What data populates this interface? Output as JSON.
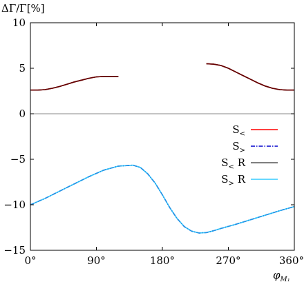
{
  "chart_data": {
    "type": "line",
    "ylabel": "ΔΓ/Γ[%]",
    "xlabel": "φ_{M_1}",
    "xlim": [
      0,
      360
    ],
    "ylim": [
      -15,
      10
    ],
    "xticks": [
      0,
      90,
      180,
      270,
      360
    ],
    "xtick_labels": [
      "0°",
      "90°",
      "180°",
      "270°",
      "360°"
    ],
    "yticks": [
      -15,
      -10,
      -5,
      0,
      5,
      10
    ],
    "ytick_labels": [
      "−15",
      "−10",
      "−5",
      "0",
      "5",
      "10"
    ],
    "grid": false,
    "legend_position": "right",
    "zero_line": true,
    "series": [
      {
        "name": "S<",
        "legend_main": "S",
        "legend_sub": "<",
        "color": "#ff0000",
        "dash": "solid",
        "x": [
          0,
          10,
          20,
          30,
          40,
          50,
          60,
          70,
          80,
          90,
          100,
          110,
          120,
          null,
          240,
          250,
          260,
          270,
          280,
          290,
          300,
          310,
          320,
          330,
          340,
          350,
          360
        ],
        "y": [
          2.6,
          2.6,
          2.65,
          2.8,
          3.0,
          3.25,
          3.5,
          3.7,
          3.9,
          4.05,
          4.1,
          4.1,
          4.1,
          null,
          5.5,
          5.45,
          5.3,
          5.0,
          4.6,
          4.2,
          3.8,
          3.4,
          3.05,
          2.8,
          2.65,
          2.6,
          2.6
        ]
      },
      {
        "name": "S>",
        "legend_main": "S",
        "legend_sub": ">",
        "color": "#0000cc",
        "dash": "dashdot",
        "x": [
          0,
          20,
          40,
          60,
          80,
          100,
          120,
          140,
          150,
          160,
          170,
          180,
          190,
          200,
          210,
          220,
          230,
          240,
          250,
          260,
          280,
          300,
          320,
          340,
          360
        ],
        "y": [
          -10.0,
          -9.3,
          -8.5,
          -7.7,
          -6.9,
          -6.2,
          -5.75,
          -5.65,
          -5.9,
          -6.6,
          -7.6,
          -8.9,
          -10.3,
          -11.5,
          -12.4,
          -12.9,
          -13.1,
          -13.05,
          -12.85,
          -12.6,
          -12.15,
          -11.65,
          -11.15,
          -10.65,
          -10.2
        ]
      },
      {
        "name": "S< R",
        "legend_main": "S",
        "legend_sub": "<",
        "legend_suffix": " R",
        "color": "#555555",
        "dash": "solid",
        "x": [
          0,
          10,
          20,
          30,
          40,
          50,
          60,
          70,
          80,
          90,
          100,
          110,
          120,
          null,
          240,
          250,
          260,
          270,
          280,
          290,
          300,
          310,
          320,
          330,
          340,
          350,
          360
        ],
        "y": [
          2.6,
          2.6,
          2.65,
          2.8,
          3.0,
          3.25,
          3.5,
          3.7,
          3.9,
          4.05,
          4.1,
          4.1,
          4.1,
          null,
          5.5,
          5.45,
          5.3,
          5.0,
          4.6,
          4.2,
          3.8,
          3.4,
          3.05,
          2.8,
          2.65,
          2.6,
          2.6
        ]
      },
      {
        "name": "S> R",
        "legend_main": "S",
        "legend_sub": ">",
        "legend_suffix": " R",
        "color": "#33ccff",
        "dash": "solid",
        "x": [
          0,
          20,
          40,
          60,
          80,
          100,
          120,
          140,
          150,
          160,
          170,
          180,
          190,
          200,
          210,
          220,
          230,
          240,
          250,
          260,
          280,
          300,
          320,
          340,
          360
        ],
        "y": [
          -10.0,
          -9.3,
          -8.5,
          -7.7,
          -6.9,
          -6.2,
          -5.75,
          -5.65,
          -5.9,
          -6.6,
          -7.6,
          -8.9,
          -10.3,
          -11.5,
          -12.4,
          -12.9,
          -13.1,
          -13.05,
          -12.85,
          -12.6,
          -12.15,
          -11.65,
          -11.15,
          -10.65,
          -10.2
        ]
      }
    ],
    "overlay_color": "#660000"
  }
}
